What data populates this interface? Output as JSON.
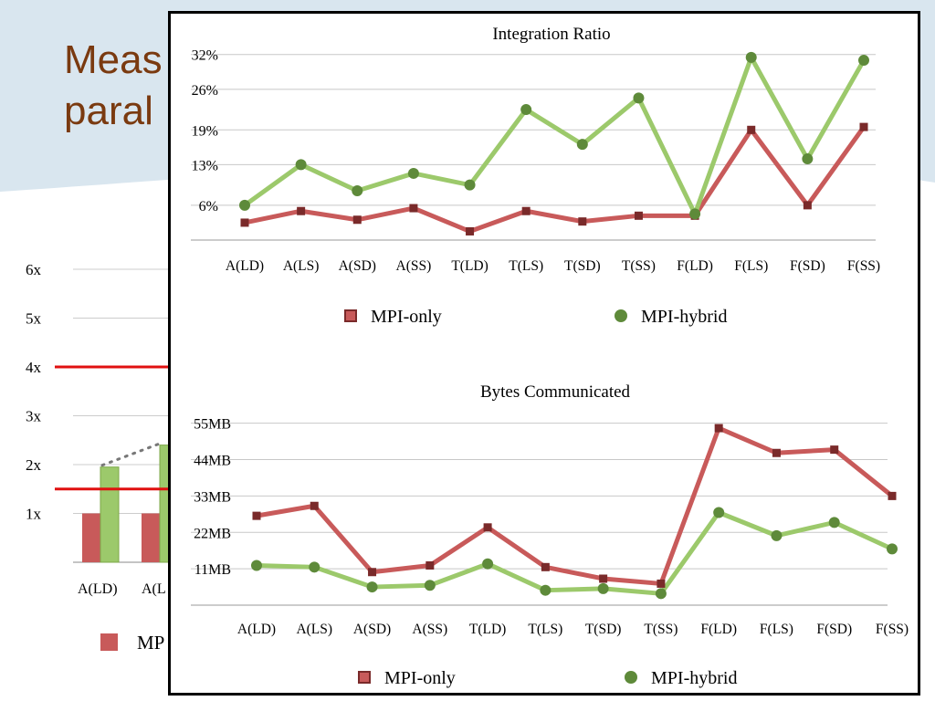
{
  "slide": {
    "title_line1": "Meas",
    "title_line2": "paral"
  },
  "colors": {
    "mpi_only": "#c85a5a",
    "mpi_only_marker": "#7a2a2a",
    "mpi_hybrid": "#9cc96b",
    "mpi_hybrid_marker": "#5e8a3a",
    "title": "#7a3a10",
    "threshold_line": "#e01010"
  },
  "chart_data": [
    {
      "type": "line",
      "title": "Integration Ratio",
      "categories": [
        "A(LD)",
        "A(LS)",
        "A(SD)",
        "A(SS)",
        "T(LD)",
        "T(LS)",
        "T(SD)",
        "T(SS)",
        "F(LD)",
        "F(LS)",
        "F(SD)",
        "F(SS)"
      ],
      "yticks": [
        "32%",
        "26%",
        "19%",
        "13%",
        "6%"
      ],
      "ytick_values": [
        32,
        26,
        19,
        13,
        6
      ],
      "ylim": [
        0,
        34
      ],
      "unit": "%",
      "legend_position": "bottom",
      "series": [
        {
          "name": "MPI-only",
          "values": [
            3,
            5,
            3.5,
            5.5,
            1.5,
            5,
            3.2,
            4.2,
            4.2,
            19,
            6,
            19.5
          ]
        },
        {
          "name": "MPI-hybrid",
          "values": [
            6,
            13,
            8.5,
            11.5,
            9.5,
            22.5,
            16.5,
            24.5,
            4.5,
            31.5,
            14,
            31
          ]
        }
      ]
    },
    {
      "type": "line",
      "title": "Bytes Communicated",
      "categories": [
        "A(LD)",
        "A(LS)",
        "A(SD)",
        "A(SS)",
        "T(LD)",
        "T(LS)",
        "T(SD)",
        "T(SS)",
        "F(LD)",
        "F(LS)",
        "F(SD)",
        "F(SS)"
      ],
      "yticks": [
        "55MB",
        "44MB",
        "33MB",
        "22MB",
        "11MB"
      ],
      "ytick_values": [
        55,
        44,
        33,
        22,
        11
      ],
      "ylim": [
        0,
        56
      ],
      "unit": "MB",
      "legend_position": "bottom",
      "series": [
        {
          "name": "MPI-only",
          "values": [
            27,
            30,
            10,
            12,
            23.5,
            11.5,
            8,
            6.5,
            53.5,
            46,
            47,
            33
          ]
        },
        {
          "name": "MPI-hybrid",
          "values": [
            12,
            11.5,
            5.5,
            6,
            12.5,
            4.5,
            5,
            3.5,
            28,
            21,
            25,
            17
          ]
        }
      ]
    },
    {
      "type": "bar",
      "partially_visible": true,
      "yticks": [
        "6x",
        "5x",
        "4x",
        "3x",
        "2x",
        "1x"
      ],
      "ytick_values": [
        6,
        5,
        4,
        3,
        2,
        1
      ],
      "ylim": [
        0,
        6
      ],
      "categories": [
        "A(LD)",
        "A(L"
      ],
      "threshold_lines": [
        4,
        1.5
      ],
      "series": [
        {
          "name": "MP",
          "values": [
            1,
            1
          ]
        },
        {
          "name": "",
          "values": [
            1.95,
            2.4
          ]
        }
      ],
      "legend_label": "MP"
    }
  ]
}
